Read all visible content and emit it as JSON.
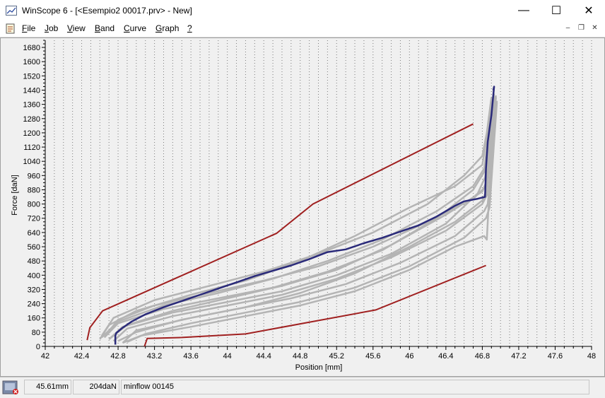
{
  "window": {
    "title": "WinScope 6 - [<Esempio2 00017.prv> - New]"
  },
  "window_controls": {
    "minimize": "—",
    "maximize": "☐",
    "close": "✕"
  },
  "menu": [
    {
      "label": "File",
      "first": "F",
      "rest": "ile"
    },
    {
      "label": "Job",
      "first": "J",
      "rest": "ob"
    },
    {
      "label": "View",
      "first": "V",
      "rest": "iew"
    },
    {
      "label": "Band",
      "first": "B",
      "rest": "and"
    },
    {
      "label": "Curve",
      "first": "C",
      "rest": "urve"
    },
    {
      "label": "Graph",
      "first": "G",
      "rest": "raph"
    },
    {
      "label": "?",
      "first": "?",
      "rest": ""
    }
  ],
  "mdi_controls": {
    "minimize": "–",
    "restore": "❐",
    "close": "✕"
  },
  "status": {
    "position": "45.61mm",
    "force": "204daN",
    "curve": "minflow 00145"
  },
  "colors": {
    "selected_curve": "#2a2a7a",
    "band": "#a02020",
    "curves": "#b4b4b4",
    "grid": "#7a7a7a"
  },
  "chart_data": {
    "type": "line",
    "xlabel": "Position [mm]",
    "ylabel": "Force [daN]",
    "xlim": [
      42,
      48
    ],
    "ylim": [
      0,
      1720
    ],
    "xticks": [
      "42",
      "42.4",
      "42.8",
      "43.2",
      "43.6",
      "44",
      "44.4",
      "44.8",
      "45.2",
      "45.6",
      "46",
      "46.4",
      "46.8",
      "47.2",
      "47.6",
      "48"
    ],
    "yticks": [
      "0",
      "80",
      "160",
      "240",
      "320",
      "400",
      "480",
      "560",
      "640",
      "720",
      "800",
      "880",
      "960",
      "1040",
      "1120",
      "1200",
      "1280",
      "1360",
      "1440",
      "1520",
      "1600",
      "1680"
    ],
    "grid": true,
    "upper_band": {
      "x": [
        42.46,
        42.49,
        42.63,
        44.54,
        44.94,
        46.7
      ],
      "y": [
        35,
        105,
        200,
        635,
        800,
        1250
      ]
    },
    "lower_band": {
      "x": [
        43.09,
        43.12,
        43.5,
        44.2,
        45.63,
        46.84
      ],
      "y": [
        0,
        45,
        50,
        70,
        205,
        455
      ]
    },
    "selected_curve": {
      "x": [
        42.77,
        42.77,
        42.78,
        42.85,
        42.95,
        43.1,
        43.3,
        43.5,
        43.7,
        43.9,
        44.1,
        44.3,
        44.5,
        44.7,
        44.9,
        45.1,
        45.3,
        45.5,
        45.7,
        45.9,
        46.1,
        46.3,
        46.5,
        46.6,
        46.75,
        46.83,
        46.84,
        46.86,
        46.9,
        46.93,
        46.92
      ],
      "y": [
        10,
        60,
        75,
        105,
        140,
        180,
        220,
        255,
        290,
        325,
        360,
        395,
        425,
        455,
        490,
        530,
        545,
        580,
        610,
        645,
        680,
        730,
        790,
        815,
        830,
        840,
        1000,
        1150,
        1300,
        1460,
        1440
      ]
    },
    "curves": [
      {
        "x": [
          42.62,
          42.75,
          43.2,
          43.8,
          44.4,
          45.0,
          45.6,
          46.2,
          46.6,
          46.8,
          46.85,
          46.9
        ],
        "y": [
          60,
          160,
          260,
          340,
          420,
          520,
          640,
          800,
          960,
          1070,
          1200,
          1400
        ]
      },
      {
        "x": [
          42.6,
          42.7,
          43.0,
          43.6,
          44.2,
          44.8,
          45.4,
          46.0,
          46.5,
          46.8,
          46.86,
          46.92
        ],
        "y": [
          40,
          120,
          200,
          290,
          370,
          480,
          620,
          780,
          900,
          1020,
          1200,
          1410
        ]
      },
      {
        "x": [
          42.65,
          42.8,
          43.3,
          43.9,
          44.5,
          45.1,
          45.7,
          46.3,
          46.7,
          46.82,
          46.88,
          46.93
        ],
        "y": [
          50,
          130,
          210,
          270,
          330,
          420,
          540,
          720,
          880,
          980,
          1220,
          1420
        ]
      },
      {
        "x": [
          42.7,
          42.85,
          43.4,
          44.0,
          44.6,
          45.2,
          45.8,
          46.4,
          46.75,
          46.83,
          46.9,
          46.95
        ],
        "y": [
          40,
          110,
          190,
          250,
          310,
          400,
          520,
          690,
          860,
          950,
          1230,
          1410
        ]
      },
      {
        "x": [
          42.66,
          42.8,
          43.2,
          43.8,
          44.4,
          45.0,
          45.6,
          46.2,
          46.7,
          46.84,
          46.9,
          46.95
        ],
        "y": [
          60,
          150,
          230,
          300,
          370,
          450,
          560,
          700,
          830,
          900,
          1200,
          1400
        ]
      },
      {
        "x": [
          42.75,
          42.9,
          43.4,
          44.0,
          44.6,
          45.2,
          45.8,
          46.4,
          46.8,
          46.85,
          46.9,
          46.94
        ],
        "y": [
          30,
          100,
          170,
          230,
          290,
          380,
          500,
          650,
          800,
          850,
          1180,
          1390
        ]
      },
      {
        "x": [
          42.8,
          43.0,
          43.5,
          44.1,
          44.7,
          45.3,
          45.9,
          46.5,
          46.82,
          46.86,
          46.92,
          46.96
        ],
        "y": [
          30,
          80,
          150,
          210,
          270,
          350,
          470,
          620,
          760,
          800,
          1150,
          1380
        ]
      },
      {
        "x": [
          42.9,
          43.1,
          43.6,
          44.2,
          44.8,
          45.4,
          46.0,
          46.6,
          46.84,
          46.88,
          46.93,
          46.96
        ],
        "y": [
          25,
          70,
          130,
          190,
          250,
          330,
          450,
          610,
          720,
          780,
          1150,
          1370
        ]
      },
      {
        "x": [
          42.85,
          43.0,
          43.6,
          44.2,
          44.8,
          45.4,
          46.0,
          46.5,
          46.8,
          46.85,
          46.9,
          46.95
        ],
        "y": [
          20,
          90,
          160,
          220,
          300,
          410,
          560,
          700,
          820,
          880,
          1160,
          1380
        ]
      },
      {
        "x": [
          42.7,
          42.9,
          43.4,
          44.0,
          44.6,
          45.2,
          45.8,
          46.4,
          46.8,
          46.85,
          46.91,
          46.95
        ],
        "y": [
          40,
          120,
          200,
          270,
          340,
          430,
          570,
          740,
          870,
          930,
          1190,
          1400
        ]
      },
      {
        "x": [
          42.62,
          42.8,
          43.3,
          43.9,
          44.5,
          45.1,
          45.7,
          46.3,
          46.7,
          46.82,
          46.88,
          46.94
        ],
        "y": [
          50,
          140,
          230,
          300,
          380,
          480,
          600,
          760,
          900,
          1000,
          1210,
          1405
        ]
      },
      {
        "x": [
          42.85,
          43.05,
          43.6,
          44.2,
          44.8,
          45.4,
          46.0,
          46.5,
          46.82,
          46.85,
          46.9,
          46.93
        ],
        "y": [
          20,
          60,
          110,
          170,
          230,
          310,
          430,
          560,
          620,
          600,
          1100,
          1360
        ]
      }
    ]
  }
}
